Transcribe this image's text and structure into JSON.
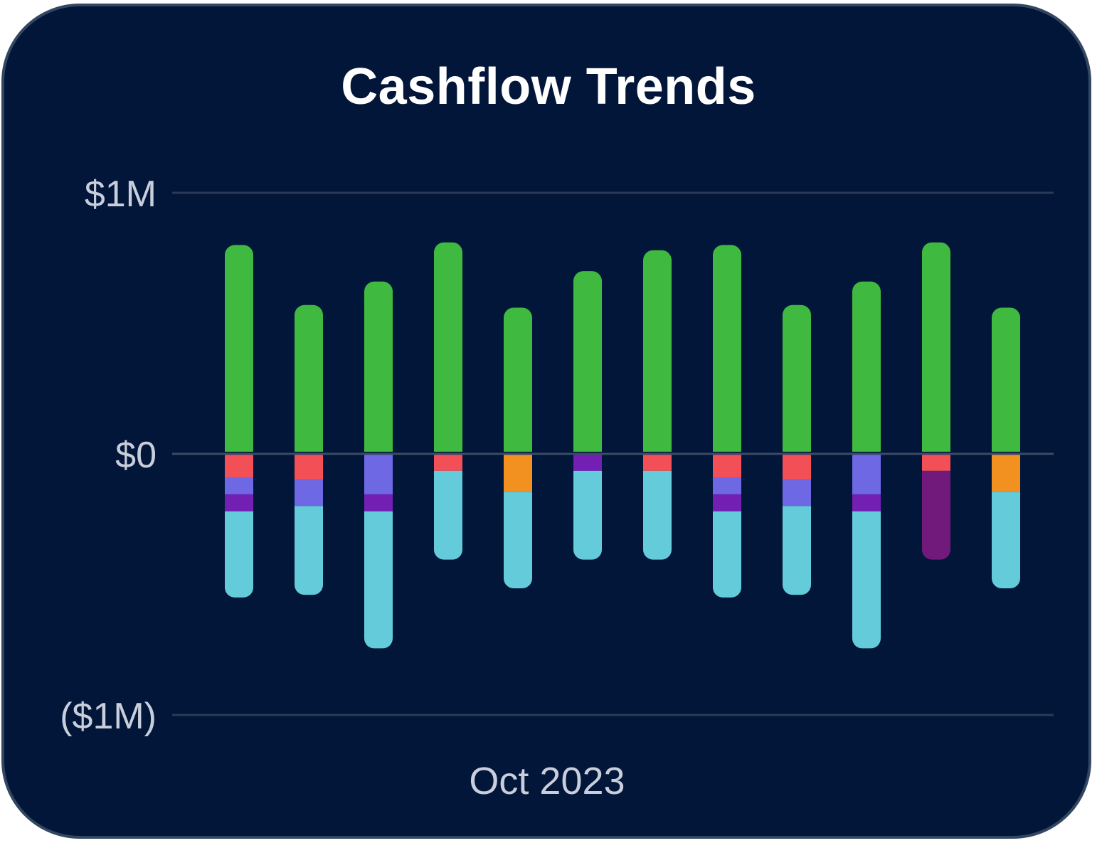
{
  "widget": {
    "title": "Cashflow Trends"
  },
  "chart_data": {
    "type": "bar",
    "stacked": true,
    "title": "Cashflow Trends",
    "xlabel": "Oct 2023",
    "ylabel": "",
    "ylim": [
      -1000000,
      1000000
    ],
    "y_ticks": [
      {
        "value": 1000000,
        "label": "$1M"
      },
      {
        "value": 0,
        "label": "$0"
      },
      {
        "value": -1000000,
        "label": "($1M)"
      }
    ],
    "grid": true,
    "legend": "none",
    "bar_count": 12,
    "series": [
      {
        "color": "#3fb93f",
        "values": [
          800000,
          570000,
          660000,
          810000,
          560000,
          700000,
          780000,
          800000,
          570000,
          660000,
          810000,
          560000
        ]
      },
      {
        "color": "#f25056",
        "values": [
          -90000,
          -100000,
          0,
          -65000,
          0,
          0,
          -65000,
          -90000,
          -100000,
          0,
          -65000,
          0
        ]
      },
      {
        "color": "#6e68e5",
        "values": [
          -65000,
          -100000,
          -155000,
          0,
          0,
          0,
          0,
          -65000,
          -100000,
          -155000,
          0,
          0
        ]
      },
      {
        "color": "#731fb3",
        "values": [
          -65000,
          0,
          -65000,
          0,
          0,
          -65000,
          0,
          -65000,
          0,
          -65000,
          0,
          0
        ]
      },
      {
        "color": "#f29120",
        "values": [
          0,
          0,
          0,
          0,
          -145000,
          0,
          0,
          0,
          0,
          0,
          0,
          -145000
        ]
      },
      {
        "color": "#721a7c",
        "values": [
          0,
          0,
          0,
          0,
          0,
          0,
          0,
          0,
          0,
          0,
          -340000,
          0
        ]
      },
      {
        "color": "#63cbda",
        "values": [
          -330000,
          -340000,
          -525000,
          -340000,
          -370000,
          -340000,
          -340000,
          -330000,
          -340000,
          -525000,
          0,
          -370000
        ]
      }
    ]
  },
  "colors": {
    "background": "#02163a",
    "border": "#334761",
    "gridline": "#2a3a56",
    "text": "#c9cedb"
  }
}
